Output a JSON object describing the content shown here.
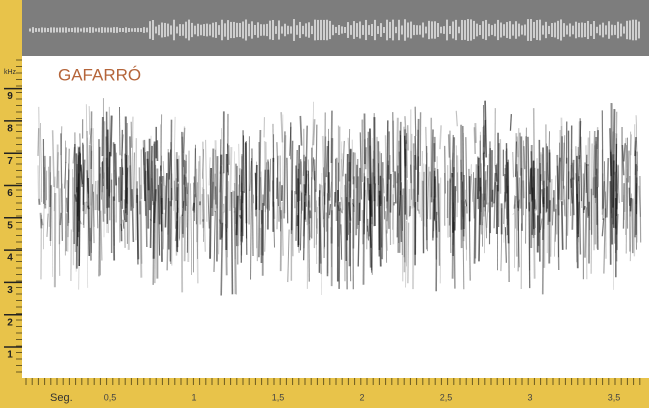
{
  "title": "GAFARRÓ",
  "y_axis": {
    "unit": "kHz",
    "labels": [
      "1",
      "2",
      "3",
      "4",
      "5",
      "6",
      "7",
      "8",
      "9"
    ]
  },
  "x_axis": {
    "unit": "Seg.",
    "labels": [
      "0,5",
      "1",
      "1,5",
      "2",
      "2,5",
      "3",
      "3,5"
    ]
  }
}
